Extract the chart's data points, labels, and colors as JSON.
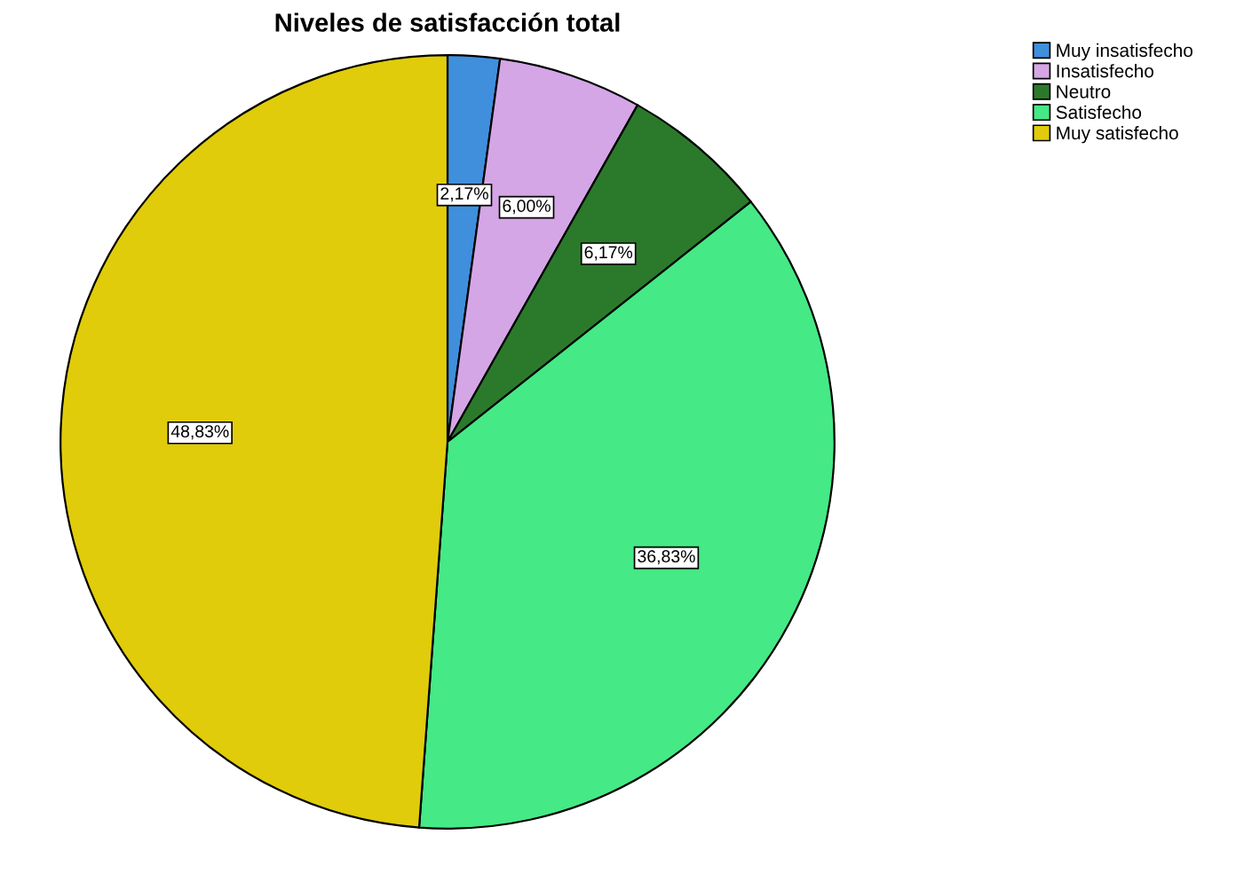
{
  "chart_data": {
    "type": "pie",
    "title": "Niveles de satisfacción total",
    "categories": [
      "Muy insatisfecho",
      "Insatisfecho",
      "Neutro",
      "Satisfecho",
      "Muy satisfecho"
    ],
    "values": [
      2.17,
      6.0,
      6.17,
      36.83,
      48.83
    ],
    "value_labels": [
      "2,17%",
      "6,00%",
      "6,17%",
      "36,83%",
      "48,83%"
    ],
    "colors": [
      "#3f8fdc",
      "#d4a6e6",
      "#2b7a2b",
      "#45e985",
      "#e0cc0a"
    ],
    "legend": "top right"
  }
}
